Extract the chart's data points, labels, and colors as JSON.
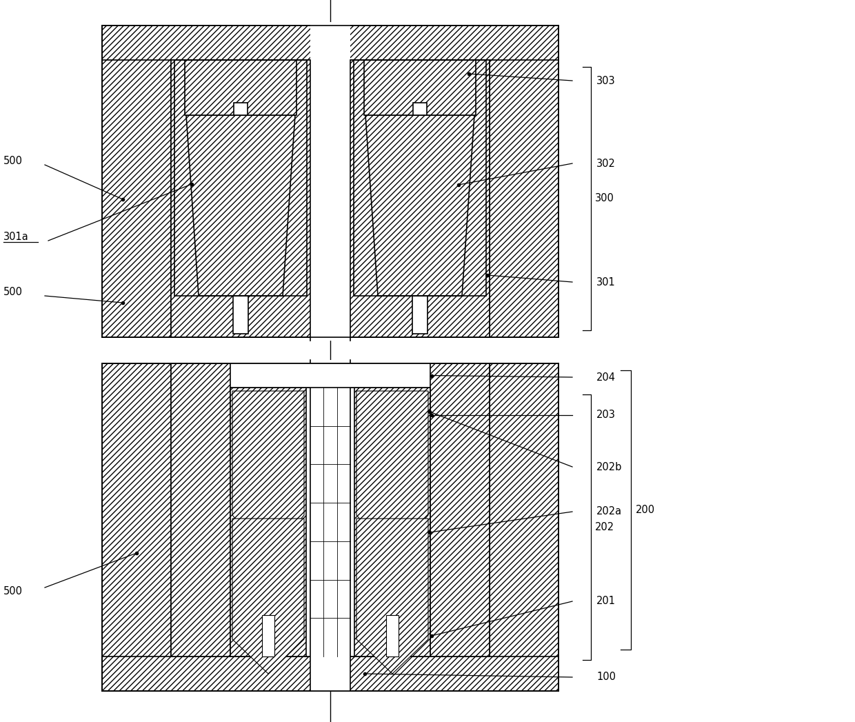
{
  "bg": "#ffffff",
  "lw": 1.2,
  "lw_thin": 0.8,
  "hatch_main": "////",
  "hatch_dense": "////////",
  "hatch_cross": "xxxx",
  "fig_w": 12.4,
  "fig_h": 10.47,
  "fs": 10.5,
  "labels": {
    "500_top": "500",
    "301a": "301a",
    "500_mid": "500",
    "500_bot": "500",
    "303": "303",
    "302": "302",
    "300": "300",
    "301": "301",
    "204": "204",
    "203": "203",
    "202b": "202b",
    "202": "202",
    "202a": "202a",
    "200": "200",
    "201": "201",
    "100": "100"
  }
}
